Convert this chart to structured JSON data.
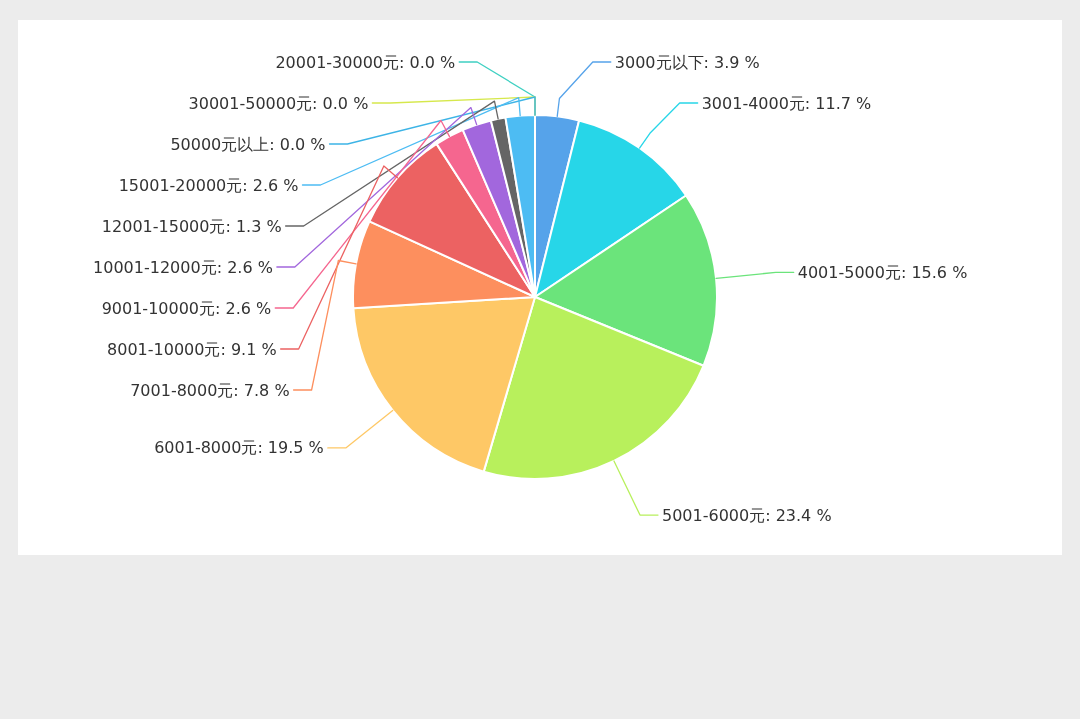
{
  "chart_data": {
    "type": "pie",
    "categories": [
      "3000元以下",
      "3001-4000元",
      "4001-5000元",
      "5001-6000元",
      "6001-8000元",
      "7001-8000元",
      "8001-10000元",
      "9001-10000元",
      "10001-12000元",
      "12001-15000元",
      "15001-20000元",
      "50000元以上",
      "30001-50000元",
      "20001-30000元"
    ],
    "values": [
      3.9,
      11.7,
      15.6,
      23.4,
      19.5,
      7.8,
      9.1,
      2.6,
      2.6,
      1.3,
      2.6,
      0.0,
      0.0,
      0.0
    ],
    "value_labels": [
      ": 3.9 %",
      ": 11.7 %",
      ": 15.6 %",
      ": 23.4 %",
      ": 19.5 %",
      ": 7.8 %",
      ": 9.1 %",
      ": 2.6 %",
      ": 2.6 %",
      ": 1.3 %",
      ": 2.6 %",
      ": 0.0 %",
      ": 0.0 %",
      ": 0.0 %"
    ],
    "colors": [
      "#56a3ea",
      "#27d6e8",
      "#6be47b",
      "#b8f05c",
      "#fec866",
      "#fd8f5e",
      "#ec6262",
      "#f5668f",
      "#a267dd",
      "#656565",
      "#4dbcf3",
      "#3db4e6",
      "#d6e84c",
      "#3fd0c2"
    ]
  }
}
